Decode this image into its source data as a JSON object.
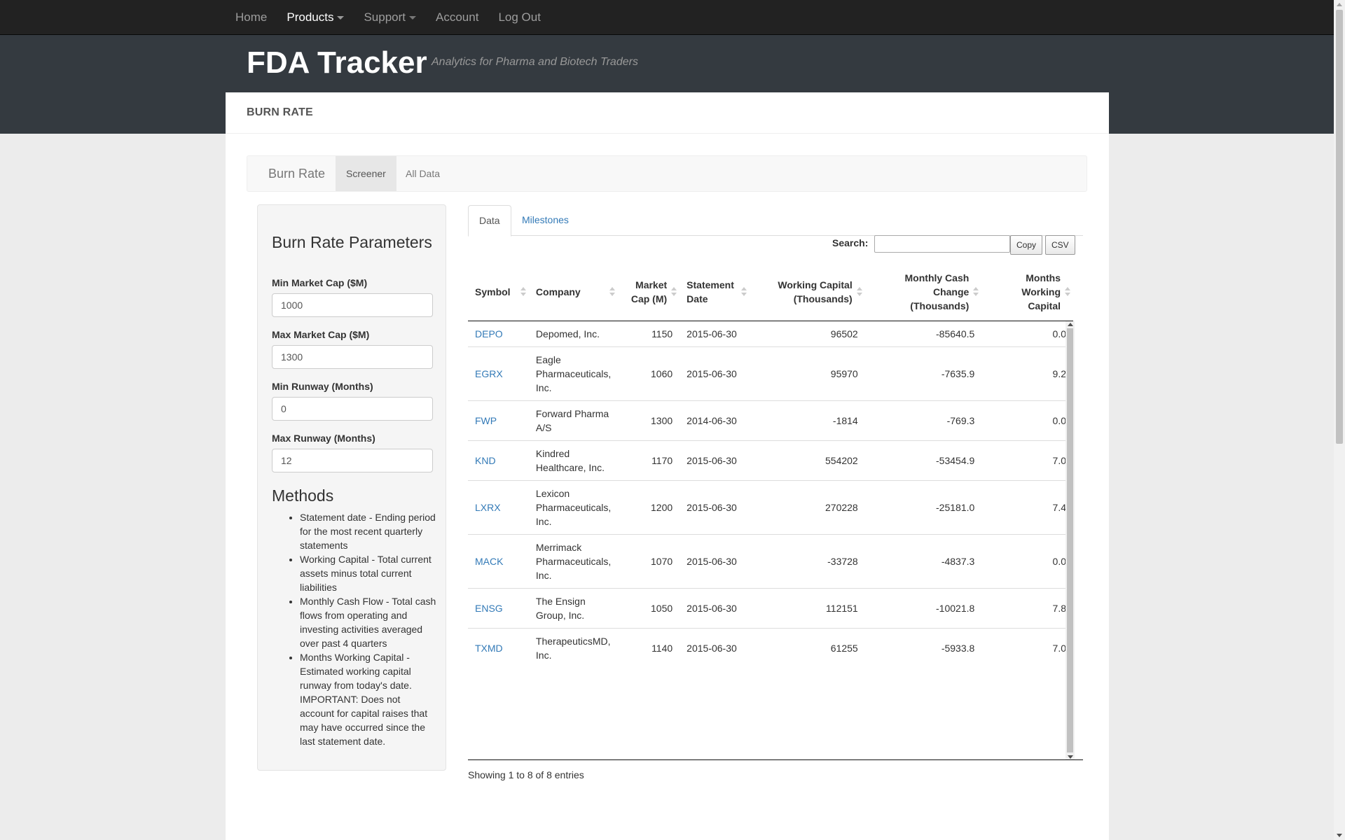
{
  "navbar": {
    "items": [
      {
        "label": "Home",
        "active": false,
        "dropdown": false
      },
      {
        "label": "Products",
        "active": true,
        "dropdown": true
      },
      {
        "label": "Support",
        "active": false,
        "dropdown": true
      },
      {
        "label": "Account",
        "active": false,
        "dropdown": false
      },
      {
        "label": "Log Out",
        "active": false,
        "dropdown": false
      }
    ]
  },
  "header": {
    "title": "FDA Tracker",
    "tagline": "Analytics for Pharma and Biotech Traders"
  },
  "card": {
    "heading": "BURN RATE"
  },
  "subnav": {
    "brand": "Burn Rate",
    "tabs": [
      {
        "label": "Screener",
        "active": true
      },
      {
        "label": "All Data",
        "active": false
      }
    ]
  },
  "params": {
    "title": "Burn Rate Parameters",
    "fields": [
      {
        "label": "Min Market Cap ($M)",
        "value": "1000"
      },
      {
        "label": "Max Market Cap ($M)",
        "value": "1300"
      },
      {
        "label": "Min Runway (Months)",
        "value": "0"
      },
      {
        "label": "Max Runway (Months)",
        "value": "12"
      }
    ],
    "methods_title": "Methods",
    "methods": [
      "Statement date - Ending period for the most recent quarterly statements",
      "Working Capital - Total current assets minus total current liabilities",
      "Monthly Cash Flow - Total cash flows from operating and investing activities averaged over past 4 quarters",
      "Months Working Capital - Estimated working capital runway from today's date. IMPORTANT: Does not account for capital raises that may have occurred since the last statement date."
    ]
  },
  "content_tabs": [
    {
      "label": "Data",
      "active": true
    },
    {
      "label": "Milestones",
      "active": false
    }
  ],
  "toolbar": {
    "search_label": "Search:",
    "search_value": "",
    "copy_label": "Copy",
    "csv_label": "CSV"
  },
  "table": {
    "columns": [
      {
        "label": "Symbol",
        "align": "left"
      },
      {
        "label": "Company",
        "align": "left"
      },
      {
        "label": "Market Cap (M)",
        "align": "right"
      },
      {
        "label": "Statement Date",
        "align": "left"
      },
      {
        "label": "Working Capital (Thousands)",
        "align": "right"
      },
      {
        "label": "Monthly Cash Change (Thousands)",
        "align": "right"
      },
      {
        "label": "Months Working Capital",
        "align": "right"
      }
    ],
    "rows": [
      {
        "symbol": "DEPO",
        "company": "Depomed, Inc.",
        "market_cap": "1150",
        "statement_date": "2015-06-30",
        "working_capital": "96502",
        "monthly_cash_change": "-85640.5",
        "months_wc": "0.0"
      },
      {
        "symbol": "EGRX",
        "company": "Eagle Pharmaceuticals, Inc.",
        "market_cap": "1060",
        "statement_date": "2015-06-30",
        "working_capital": "95970",
        "monthly_cash_change": "-7635.9",
        "months_wc": "9.2"
      },
      {
        "symbol": "FWP",
        "company": "Forward Pharma A/S",
        "market_cap": "1300",
        "statement_date": "2014-06-30",
        "working_capital": "-1814",
        "monthly_cash_change": "-769.3",
        "months_wc": "0.0"
      },
      {
        "symbol": "KND",
        "company": "Kindred Healthcare, Inc.",
        "market_cap": "1170",
        "statement_date": "2015-06-30",
        "working_capital": "554202",
        "monthly_cash_change": "-53454.9",
        "months_wc": "7.0"
      },
      {
        "symbol": "LXRX",
        "company": "Lexicon Pharmaceuticals, Inc.",
        "market_cap": "1200",
        "statement_date": "2015-06-30",
        "working_capital": "270228",
        "monthly_cash_change": "-25181.0",
        "months_wc": "7.4"
      },
      {
        "symbol": "MACK",
        "company": "Merrimack Pharmaceuticals, Inc.",
        "market_cap": "1070",
        "statement_date": "2015-06-30",
        "working_capital": "-33728",
        "monthly_cash_change": "-4837.3",
        "months_wc": "0.0"
      },
      {
        "symbol": "ENSG",
        "company": "The Ensign Group, Inc.",
        "market_cap": "1050",
        "statement_date": "2015-06-30",
        "working_capital": "112151",
        "monthly_cash_change": "-10021.8",
        "months_wc": "7.8"
      },
      {
        "symbol": "TXMD",
        "company": "TherapeuticsMD, Inc.",
        "market_cap": "1140",
        "statement_date": "2015-06-30",
        "working_capital": "61255",
        "monthly_cash_change": "-5933.8",
        "months_wc": "7.0"
      }
    ],
    "info": "Showing 1 to 8 of 8 entries"
  }
}
